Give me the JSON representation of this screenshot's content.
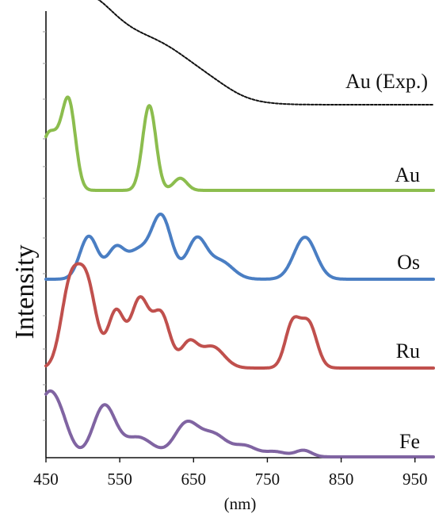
{
  "chart_data": {
    "type": "line",
    "title": "",
    "xlabel": "(nm)",
    "ylabel": "Intensity",
    "xlim": [
      450,
      975
    ],
    "xticks": [
      "450",
      "550",
      "650",
      "750",
      "850",
      "950"
    ],
    "grid": false,
    "legend": "labels at right end of each curve",
    "series": [
      {
        "name": "Au (Exp.)",
        "color": "#111111",
        "style": "dashed",
        "peaks": [
          [
            448,
            20,
            0.78
          ],
          [
            494,
            40,
            1.0
          ],
          [
            560,
            65,
            0.62
          ],
          [
            620,
            55,
            0.33
          ],
          [
            680,
            25,
            0.04
          ]
        ]
      },
      {
        "name": "Au",
        "color": "#8cbd4e",
        "style": "solid",
        "peaks": [
          [
            450,
            9,
            0.5
          ],
          [
            464,
            9,
            0.4
          ],
          [
            481,
            9,
            1.0
          ],
          [
            590,
            9,
            0.98
          ],
          [
            632,
            9,
            0.14
          ]
        ]
      },
      {
        "name": "Os",
        "color": "#4a7ec3",
        "style": "solid",
        "peaks": [
          [
            508,
            12,
            0.55
          ],
          [
            545,
            12,
            0.4
          ],
          [
            574,
            13,
            0.32
          ],
          [
            606,
            14,
            0.82
          ],
          [
            654,
            13,
            0.5
          ],
          [
            686,
            17,
            0.23
          ],
          [
            801,
            15,
            0.54
          ]
        ]
      },
      {
        "name": "Ru",
        "color": "#c0504d",
        "style": "solid",
        "peaks": [
          [
            482,
            12,
            0.8
          ],
          [
            505,
            13,
            0.9
          ],
          [
            545,
            11,
            0.6
          ],
          [
            577,
            12,
            0.72
          ],
          [
            606,
            12,
            0.57
          ],
          [
            644,
            11,
            0.26
          ],
          [
            675,
            16,
            0.23
          ],
          [
            784,
            10,
            0.46
          ],
          [
            806,
            11,
            0.47
          ]
        ]
      },
      {
        "name": "Fe",
        "color": "#8064a2",
        "style": "solid",
        "peaks": [
          [
            452,
            16,
            0.9
          ],
          [
            472,
            13,
            0.3
          ],
          [
            529,
            15,
            0.78
          ],
          [
            575,
            20,
            0.3
          ],
          [
            640,
            16,
            0.5
          ],
          [
            677,
            18,
            0.34
          ],
          [
            720,
            15,
            0.16
          ],
          [
            760,
            15,
            0.08
          ],
          [
            799,
            11,
            0.1
          ]
        ]
      }
    ]
  }
}
